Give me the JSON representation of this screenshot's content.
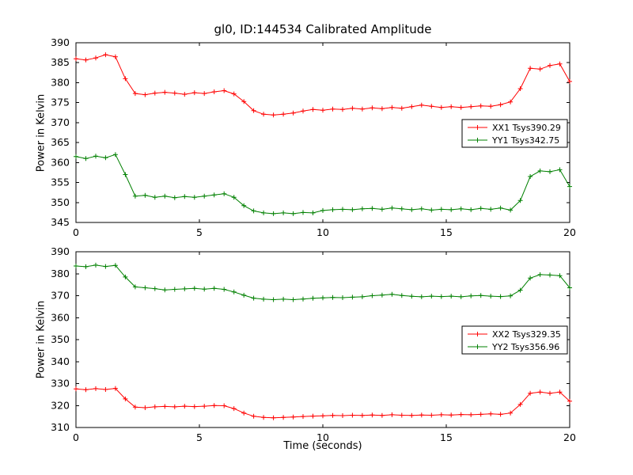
{
  "figure": {
    "title": "gl0, ID:144534 Calibrated Amplitude",
    "xlabel": "Time (seconds)",
    "ylabel": "Power in Kelvin",
    "background": "#ffffff",
    "axis_color": "#000000"
  },
  "chart_data": [
    {
      "type": "line",
      "marker": "+",
      "xlim": [
        0,
        20
      ],
      "ylim": [
        345,
        390
      ],
      "xticks": [
        0,
        5,
        10,
        15,
        20
      ],
      "yticks": [
        345,
        350,
        355,
        360,
        365,
        370,
        375,
        380,
        385,
        390
      ],
      "legend_position": "right-middle",
      "x": [
        0,
        0.4,
        0.8,
        1.2,
        1.6,
        2,
        2.4,
        2.8,
        3.2,
        3.6,
        4,
        4.4,
        4.8,
        5.2,
        5.6,
        6,
        6.4,
        6.8,
        7.2,
        7.6,
        8,
        8.4,
        8.8,
        9.2,
        9.6,
        10,
        10.4,
        10.8,
        11.2,
        11.6,
        12,
        12.4,
        12.8,
        13.2,
        13.6,
        14,
        14.4,
        14.8,
        15.2,
        15.6,
        16,
        16.4,
        16.8,
        17.2,
        17.6,
        18,
        18.4,
        18.8,
        19.2,
        19.6,
        20
      ],
      "series": [
        {
          "name": "XX1 Tsys390.29",
          "color": "#ff0000",
          "values": [
            386.0,
            385.7,
            386.2,
            387.0,
            386.5,
            381.0,
            377.3,
            377.0,
            377.4,
            377.6,
            377.4,
            377.1,
            377.5,
            377.3,
            377.7,
            378.0,
            377.2,
            375.3,
            373.0,
            372.1,
            371.9,
            372.1,
            372.4,
            372.9,
            373.3,
            373.1,
            373.4,
            373.3,
            373.6,
            373.4,
            373.7,
            373.5,
            373.8,
            373.6,
            374.0,
            374.4,
            374.1,
            373.8,
            374.0,
            373.8,
            374.0,
            374.2,
            374.1,
            374.5,
            375.2,
            378.5,
            383.6,
            383.4,
            384.3,
            384.7,
            380.3
          ]
        },
        {
          "name": "YY1 Tsys342.75",
          "color": "#008000",
          "values": [
            361.5,
            361.0,
            361.6,
            361.2,
            362.0,
            357.0,
            351.6,
            351.8,
            351.3,
            351.6,
            351.2,
            351.5,
            351.3,
            351.6,
            351.9,
            352.2,
            351.3,
            349.2,
            347.9,
            347.4,
            347.2,
            347.4,
            347.2,
            347.5,
            347.4,
            348.0,
            348.2,
            348.3,
            348.2,
            348.4,
            348.5,
            348.3,
            348.6,
            348.4,
            348.2,
            348.4,
            348.1,
            348.3,
            348.2,
            348.4,
            348.2,
            348.5,
            348.3,
            348.6,
            348.1,
            350.5,
            356.5,
            357.9,
            357.7,
            358.2,
            354.0
          ]
        }
      ]
    },
    {
      "type": "line",
      "marker": "+",
      "xlim": [
        0,
        20
      ],
      "ylim": [
        310,
        390
      ],
      "xticks": [
        0,
        5,
        10,
        15,
        20
      ],
      "yticks": [
        310,
        320,
        330,
        340,
        350,
        360,
        370,
        380,
        390
      ],
      "legend_position": "right-middle",
      "x": [
        0,
        0.4,
        0.8,
        1.2,
        1.6,
        2,
        2.4,
        2.8,
        3.2,
        3.6,
        4,
        4.4,
        4.8,
        5.2,
        5.6,
        6,
        6.4,
        6.8,
        7.2,
        7.6,
        8,
        8.4,
        8.8,
        9.2,
        9.6,
        10,
        10.4,
        10.8,
        11.2,
        11.6,
        12,
        12.4,
        12.8,
        13.2,
        13.6,
        14,
        14.4,
        14.8,
        15.2,
        15.6,
        16,
        16.4,
        16.8,
        17.2,
        17.6,
        18,
        18.4,
        18.8,
        19.2,
        19.6,
        20
      ],
      "series": [
        {
          "name": "XX2 Tsys329.35",
          "color": "#ff0000",
          "values": [
            327.6,
            327.2,
            327.7,
            327.3,
            327.8,
            323.0,
            319.3,
            319.0,
            319.4,
            319.6,
            319.4,
            319.7,
            319.5,
            319.7,
            320.0,
            319.9,
            318.6,
            316.6,
            315.1,
            314.6,
            314.4,
            314.6,
            314.8,
            315.0,
            315.2,
            315.3,
            315.5,
            315.4,
            315.6,
            315.5,
            315.7,
            315.5,
            315.8,
            315.6,
            315.5,
            315.7,
            315.6,
            315.8,
            315.7,
            315.9,
            315.8,
            316.0,
            316.2,
            316.0,
            316.6,
            320.5,
            325.6,
            326.1,
            325.6,
            326.1,
            322.0
          ]
        },
        {
          "name": "YY2 Tsys356.96",
          "color": "#008000",
          "values": [
            383.5,
            383.2,
            383.9,
            383.3,
            383.8,
            378.5,
            374.0,
            373.6,
            373.2,
            372.6,
            372.9,
            373.1,
            373.3,
            373.0,
            373.3,
            372.9,
            371.7,
            370.2,
            368.9,
            368.4,
            368.2,
            368.4,
            368.2,
            368.5,
            368.8,
            369.0,
            369.2,
            369.1,
            369.3,
            369.5,
            370.0,
            370.3,
            370.6,
            370.1,
            369.7,
            369.5,
            369.8,
            369.6,
            369.8,
            369.5,
            369.9,
            370.1,
            369.8,
            369.6,
            369.9,
            372.5,
            378.0,
            379.6,
            379.4,
            379.1,
            373.6
          ]
        }
      ]
    }
  ]
}
